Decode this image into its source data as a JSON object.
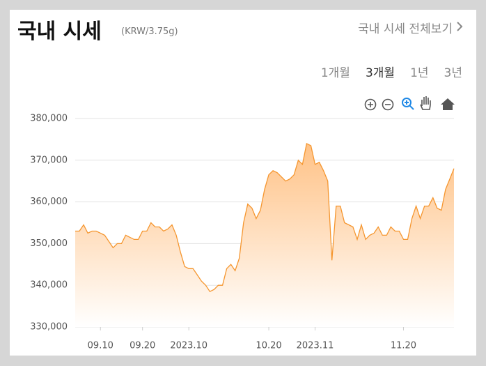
{
  "header": {
    "title": "국내 시세",
    "unit": "(KRW/3.75g)",
    "link": "국내 시세 전체보기"
  },
  "tabs": [
    {
      "label": "1개월",
      "selected": false
    },
    {
      "label": "3개월",
      "selected": true
    },
    {
      "label": "1년",
      "selected": false
    },
    {
      "label": "3년",
      "selected": false
    }
  ],
  "chart_data": {
    "type": "area",
    "color": "#f5962f",
    "fill_color": "#ffbf80",
    "grid": true,
    "categories": [
      null,
      null,
      null,
      null,
      null,
      null,
      "09.10",
      null,
      null,
      null,
      null,
      null,
      null,
      null,
      null,
      null,
      "09.20",
      null,
      null,
      null,
      null,
      null,
      null,
      null,
      null,
      null,
      null,
      "2023.10",
      null,
      null,
      null,
      null,
      null,
      null,
      null,
      null,
      null,
      null,
      null,
      null,
      null,
      null,
      null,
      null,
      null,
      null,
      "10.20",
      null,
      null,
      null,
      null,
      null,
      null,
      null,
      null,
      null,
      null,
      "2023.11",
      null,
      null,
      null,
      null,
      null,
      null,
      null,
      null,
      null,
      null,
      null,
      null,
      null,
      null,
      null,
      null,
      null,
      null,
      null,
      null,
      "11.20",
      null,
      null,
      null,
      null,
      null,
      null,
      null,
      null,
      null,
      null,
      null,
      null
    ],
    "values": [
      353000,
      353000,
      354500,
      352500,
      353000,
      353000,
      352500,
      352000,
      350500,
      349000,
      350000,
      350000,
      352000,
      351500,
      351000,
      351000,
      353000,
      353000,
      355000,
      354000,
      354000,
      353000,
      353500,
      354500,
      352000,
      348000,
      344500,
      344000,
      344000,
      342500,
      341000,
      340000,
      338500,
      339000,
      340000,
      340000,
      344000,
      345000,
      343500,
      346500,
      355000,
      359500,
      358500,
      356000,
      358000,
      363000,
      366500,
      367500,
      367000,
      366000,
      365000,
      365500,
      366500,
      370000,
      369000,
      374000,
      373500,
      369000,
      369500,
      367500,
      365000,
      346000,
      359000,
      359000,
      355000,
      354500,
      354000,
      351000,
      354500,
      351000,
      352000,
      352500,
      354000,
      352000,
      352000,
      354000,
      353000,
      353000,
      351000,
      351000,
      356000,
      359000,
      356000,
      359000,
      359000,
      361000,
      358500,
      358000,
      363000,
      365500,
      368000
    ],
    "ylim": [
      330000,
      380000
    ],
    "yticks": [
      {
        "value": 330000,
        "label": "330,000"
      },
      {
        "value": 340000,
        "label": "340,000"
      },
      {
        "value": 350000,
        "label": "350,000"
      },
      {
        "value": 360000,
        "label": "360,000"
      },
      {
        "value": 370000,
        "label": "370,000"
      },
      {
        "value": 380000,
        "label": "380,000"
      }
    ]
  }
}
